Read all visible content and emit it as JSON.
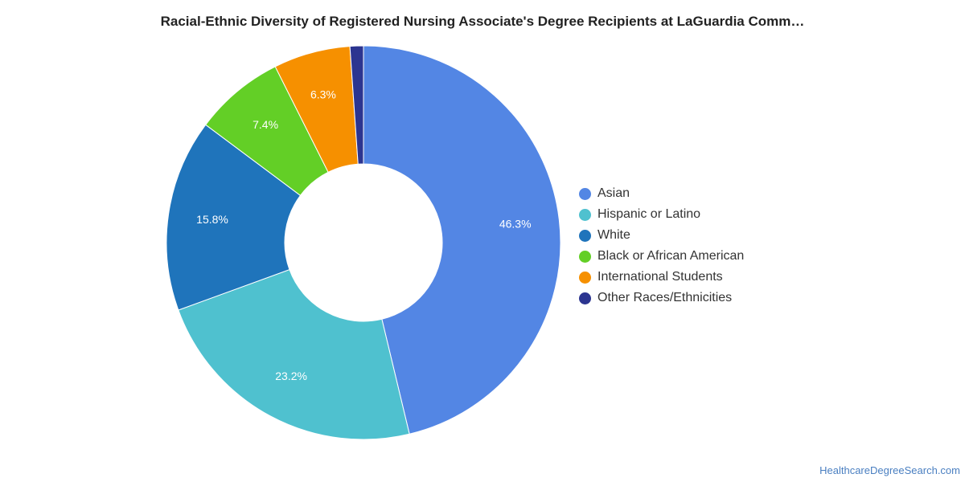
{
  "title": "Racial-Ethnic Diversity of Registered Nursing Associate's Degree Recipients at LaGuardia Comm…",
  "source": "HealthcareDegreeSearch.com",
  "chart_data": {
    "type": "pie",
    "variant": "donut",
    "title": "Racial-Ethnic Diversity of Registered Nursing Associate's Degree Recipients at LaGuardia Comm…",
    "legend_position": "right",
    "categories": [
      "Asian",
      "Hispanic or Latino",
      "White",
      "Black or African American",
      "International Students",
      "Other Races/Ethnicities"
    ],
    "values": [
      46.3,
      23.2,
      15.8,
      7.4,
      6.3,
      1.1
    ],
    "labels": [
      "46.3%",
      "23.2%",
      "15.8%",
      "7.4%",
      "6.3%",
      ""
    ],
    "colors": [
      "#5386e4",
      "#4fc1cf",
      "#1f74bb",
      "#63cf26",
      "#f69000",
      "#2c3590"
    ]
  }
}
